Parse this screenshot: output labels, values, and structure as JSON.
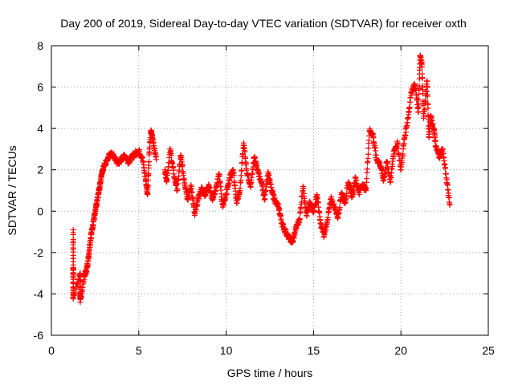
{
  "chart_data": {
    "type": "scatter",
    "title": "Day 200 of 2019, Sidereal Day-to-day VTEC variation (SDTVAR) for receiver oxth",
    "xlabel": "GPS time / hours",
    "ylabel": "SDTVAR / TECUs",
    "xlim": [
      0,
      25
    ],
    "ylim": [
      -6,
      8
    ],
    "xticks": [
      0,
      5,
      10,
      15,
      20,
      25
    ],
    "yticks": [
      -6,
      -4,
      -2,
      0,
      2,
      4,
      6,
      8
    ],
    "grid": true,
    "marker": "+",
    "color": "#ff0000",
    "series": [
      {
        "name": "SDTVAR",
        "trace": [
          [
            1.25,
            -0.9
          ],
          [
            1.25,
            -2.6
          ],
          [
            1.25,
            -3.5
          ],
          [
            1.25,
            -4.2
          ],
          [
            1.65,
            -3.0
          ],
          [
            1.65,
            -3.8
          ],
          [
            1.65,
            -4.4
          ],
          [
            1.9,
            -3.1
          ],
          [
            2.0,
            -2.9
          ],
          [
            2.1,
            -2.4
          ],
          [
            2.2,
            -1.6
          ],
          [
            2.3,
            -1.0
          ],
          [
            2.4,
            -0.5
          ],
          [
            2.5,
            -0.1
          ],
          [
            2.6,
            0.4
          ],
          [
            2.7,
            0.9
          ],
          [
            2.8,
            1.4
          ],
          [
            2.9,
            1.9
          ],
          [
            3.0,
            2.2
          ],
          [
            3.2,
            2.5
          ],
          [
            3.4,
            2.8
          ],
          [
            3.6,
            2.6
          ],
          [
            3.8,
            2.3
          ],
          [
            4.0,
            2.5
          ],
          [
            4.2,
            2.7
          ],
          [
            4.4,
            2.4
          ],
          [
            4.6,
            2.6
          ],
          [
            4.8,
            2.8
          ],
          [
            5.0,
            2.9
          ],
          [
            5.2,
            2.6
          ],
          [
            5.4,
            1.5
          ],
          [
            5.5,
            0.8
          ],
          [
            5.6,
            2.8
          ],
          [
            5.7,
            3.9
          ],
          [
            5.8,
            3.5
          ],
          [
            6.0,
            2.5
          ],
          [
            6.5,
            2.0
          ],
          [
            6.6,
            1.5
          ],
          [
            6.8,
            3.0
          ],
          [
            7.0,
            1.8
          ],
          [
            7.2,
            1.0
          ],
          [
            7.4,
            2.7
          ],
          [
            7.6,
            1.5
          ],
          [
            7.8,
            0.6
          ],
          [
            8.0,
            1.2
          ],
          [
            8.2,
            -0.2
          ],
          [
            8.4,
            0.6
          ],
          [
            8.6,
            1.1
          ],
          [
            8.8,
            0.8
          ],
          [
            9.0,
            1.3
          ],
          [
            9.2,
            0.6
          ],
          [
            9.4,
            1.0
          ],
          [
            9.6,
            1.8
          ],
          [
            9.8,
            0.2
          ],
          [
            10.0,
            0.8
          ],
          [
            10.2,
            1.6
          ],
          [
            10.4,
            2.0
          ],
          [
            10.6,
            0.4
          ],
          [
            10.8,
            1.1
          ],
          [
            11.0,
            3.3
          ],
          [
            11.2,
            1.8
          ],
          [
            11.4,
            1.2
          ],
          [
            11.6,
            2.6
          ],
          [
            11.8,
            2.0
          ],
          [
            12.0,
            1.4
          ],
          [
            12.2,
            0.6
          ],
          [
            12.4,
            1.9
          ],
          [
            12.6,
            1.0
          ],
          [
            12.8,
            0.5
          ],
          [
            13.0,
            0.2
          ],
          [
            13.2,
            -0.6
          ],
          [
            13.4,
            -1.0
          ],
          [
            13.6,
            -1.3
          ],
          [
            13.8,
            -1.5
          ],
          [
            14.0,
            -0.8
          ],
          [
            14.2,
            -0.4
          ],
          [
            14.4,
            1.2
          ],
          [
            14.6,
            -0.2
          ],
          [
            14.8,
            0.4
          ],
          [
            15.0,
            0.0
          ],
          [
            15.2,
            0.8
          ],
          [
            15.4,
            -0.6
          ],
          [
            15.6,
            -1.2
          ],
          [
            15.8,
            -0.4
          ],
          [
            16.0,
            0.6
          ],
          [
            16.2,
            0.2
          ],
          [
            16.4,
            -0.3
          ],
          [
            16.6,
            0.9
          ],
          [
            16.8,
            0.4
          ],
          [
            17.0,
            1.4
          ],
          [
            17.2,
            0.7
          ],
          [
            17.4,
            1.6
          ],
          [
            17.6,
            0.9
          ],
          [
            17.8,
            1.3
          ],
          [
            18.0,
            1.0
          ],
          [
            18.2,
            3.9
          ],
          [
            18.4,
            3.7
          ],
          [
            18.6,
            2.5
          ],
          [
            18.8,
            2.3
          ],
          [
            19.0,
            1.5
          ],
          [
            19.2,
            2.4
          ],
          [
            19.4,
            1.4
          ],
          [
            19.6,
            2.9
          ],
          [
            19.8,
            3.3
          ],
          [
            20.0,
            2.0
          ],
          [
            20.2,
            3.5
          ],
          [
            20.4,
            4.5
          ],
          [
            20.6,
            5.8
          ],
          [
            20.8,
            6.1
          ],
          [
            21.0,
            4.8
          ],
          [
            21.1,
            7.5
          ],
          [
            21.2,
            7.1
          ],
          [
            21.3,
            4.5
          ],
          [
            21.5,
            6.3
          ],
          [
            21.6,
            3.6
          ],
          [
            21.7,
            4.6
          ],
          [
            21.9,
            3.9
          ],
          [
            22.0,
            3.1
          ],
          [
            22.2,
            2.6
          ],
          [
            22.4,
            3.0
          ],
          [
            22.6,
            1.6
          ],
          [
            22.8,
            0.3
          ]
        ]
      }
    ]
  }
}
